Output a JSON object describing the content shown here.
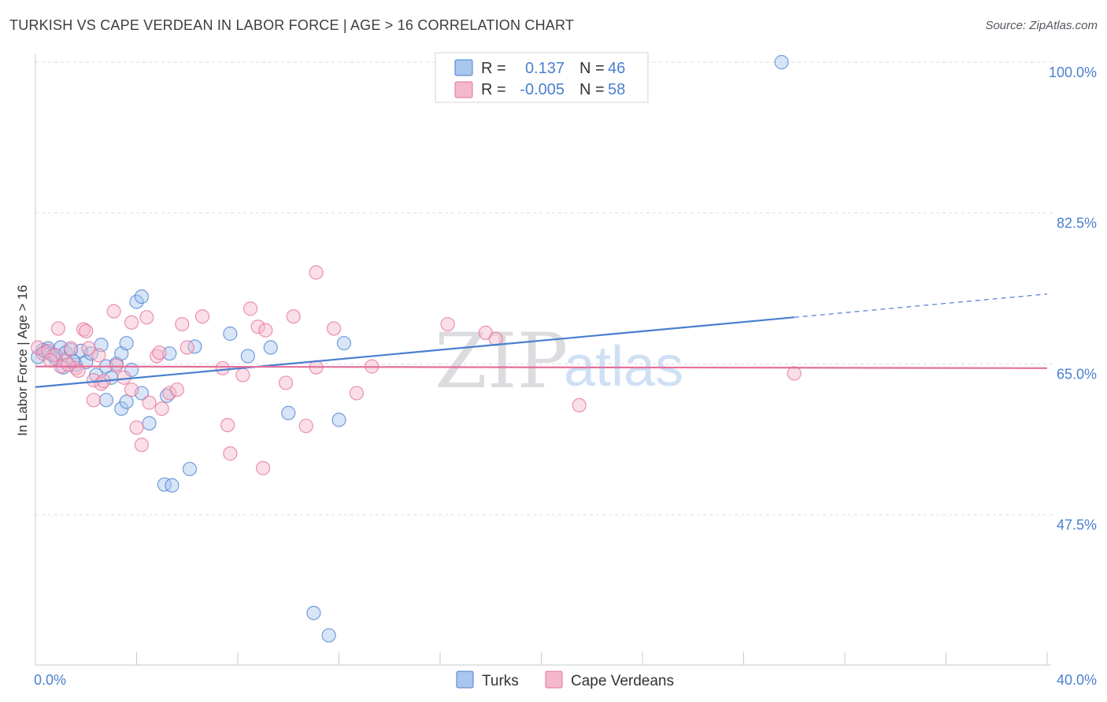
{
  "header": {
    "title": "TURKISH VS CAPE VERDEAN IN LABOR FORCE | AGE > 16 CORRELATION CHART",
    "source": "Source: ZipAtlas.com"
  },
  "watermark": {
    "zip": "ZIP",
    "atlas": "atlas"
  },
  "colors": {
    "turks": "#4a7fd0",
    "turks_fill": "#a9c6ee",
    "cape": "#e4709a",
    "cape_fill": "#f4b8cd",
    "grid": "#dcdce4",
    "tick_label": "#4a7fd0"
  },
  "legend": {
    "rows": [
      {
        "r_label": "R =",
        "r_value": "0.137",
        "n_label": "N =",
        "n_value": "46"
      },
      {
        "r_label": "R =",
        "r_value": "-0.005",
        "n_label": "N =",
        "n_value": "58"
      }
    ]
  },
  "chart_data": {
    "type": "scatter",
    "title": "TURKISH VS CAPE VERDEAN IN LABOR FORCE | AGE > 16 CORRELATION CHART",
    "xlabel": "",
    "ylabel": "In Labor Force | Age > 16",
    "xlim": [
      0,
      40
    ],
    "ylim": [
      33.5,
      102
    ],
    "x_tick_labels": [
      "0.0%",
      "40.0%"
    ],
    "y_ticks": [
      47.5,
      65.0,
      82.5,
      100.0
    ],
    "y_tick_labels": [
      "47.5%",
      "65.0%",
      "82.5%",
      "100.0%"
    ],
    "grid": true,
    "legend_position": "top-center",
    "series": [
      {
        "name": "Turks",
        "r": 0.137,
        "n": 46,
        "trend": {
          "x0": 0,
          "y0": 62.3,
          "x1": 30,
          "y1": 70.4,
          "dashed_to_x": 40,
          "dashed_y": 73.1
        },
        "points": [
          [
            0.1,
            65.8
          ],
          [
            0.3,
            66.6
          ],
          [
            0.5,
            66.8
          ],
          [
            0.6,
            66.2
          ],
          [
            0.8,
            65.6
          ],
          [
            1.0,
            66.9
          ],
          [
            1.2,
            66.3
          ],
          [
            1.4,
            66.6
          ],
          [
            1.6,
            64.9
          ],
          [
            1.8,
            66.5
          ],
          [
            2.0,
            65.2
          ],
          [
            2.2,
            66.2
          ],
          [
            2.6,
            67.2
          ],
          [
            2.8,
            64.7
          ],
          [
            3.2,
            65.0
          ],
          [
            3.4,
            66.2
          ],
          [
            3.6,
            67.4
          ],
          [
            3.8,
            64.3
          ],
          [
            4.2,
            61.6
          ],
          [
            4.0,
            72.2
          ],
          [
            4.2,
            72.8
          ],
          [
            2.8,
            60.8
          ],
          [
            3.4,
            59.8
          ],
          [
            3.6,
            60.6
          ],
          [
            4.5,
            58.1
          ],
          [
            5.2,
            61.3
          ],
          [
            5.3,
            66.2
          ],
          [
            5.1,
            51.0
          ],
          [
            5.4,
            50.9
          ],
          [
            6.1,
            52.8
          ],
          [
            6.3,
            67.0
          ],
          [
            7.7,
            68.5
          ],
          [
            8.4,
            65.9
          ],
          [
            9.3,
            66.9
          ],
          [
            10.0,
            59.3
          ],
          [
            11.0,
            36.1
          ],
          [
            11.6,
            33.5
          ],
          [
            12.0,
            58.5
          ],
          [
            12.2,
            67.4
          ],
          [
            29.5,
            100.0
          ],
          [
            0.4,
            66.4
          ],
          [
            1.5,
            65.3
          ],
          [
            2.4,
            63.7
          ],
          [
            3.0,
            63.4
          ],
          [
            1.1,
            64.6
          ],
          [
            0.7,
            66.0
          ]
        ]
      },
      {
        "name": "Cape Verdeans",
        "r": -0.005,
        "n": 58,
        "trend": {
          "x0": 0,
          "y0": 64.7,
          "x1": 40,
          "y1": 64.5
        },
        "points": [
          [
            0.1,
            66.9
          ],
          [
            0.3,
            66.2
          ],
          [
            0.5,
            66.5
          ],
          [
            0.8,
            66.0
          ],
          [
            0.9,
            69.1
          ],
          [
            1.2,
            65.3
          ],
          [
            1.4,
            66.8
          ],
          [
            1.6,
            64.5
          ],
          [
            1.7,
            64.2
          ],
          [
            1.9,
            69.0
          ],
          [
            2.0,
            68.8
          ],
          [
            2.3,
            63.1
          ],
          [
            2.3,
            60.8
          ],
          [
            2.5,
            66.0
          ],
          [
            2.6,
            62.7
          ],
          [
            2.7,
            63.0
          ],
          [
            3.1,
            71.1
          ],
          [
            3.2,
            64.8
          ],
          [
            3.5,
            63.4
          ],
          [
            3.8,
            69.8
          ],
          [
            3.8,
            62.0
          ],
          [
            4.0,
            57.6
          ],
          [
            4.2,
            55.6
          ],
          [
            4.4,
            70.4
          ],
          [
            4.5,
            60.5
          ],
          [
            4.8,
            65.9
          ],
          [
            5.0,
            59.8
          ],
          [
            5.3,
            61.6
          ],
          [
            5.6,
            62.0
          ],
          [
            5.8,
            69.6
          ],
          [
            6.0,
            66.9
          ],
          [
            6.6,
            70.5
          ],
          [
            7.4,
            64.5
          ],
          [
            7.6,
            57.9
          ],
          [
            7.7,
            54.6
          ],
          [
            8.2,
            63.7
          ],
          [
            8.5,
            71.4
          ],
          [
            8.8,
            69.3
          ],
          [
            9.1,
            68.9
          ],
          [
            9.0,
            52.9
          ],
          [
            9.9,
            62.8
          ],
          [
            10.2,
            70.5
          ],
          [
            10.7,
            57.8
          ],
          [
            11.1,
            64.6
          ],
          [
            11.1,
            75.6
          ],
          [
            11.8,
            69.1
          ],
          [
            12.7,
            61.6
          ],
          [
            13.3,
            64.7
          ],
          [
            16.3,
            69.6
          ],
          [
            17.8,
            68.6
          ],
          [
            18.2,
            67.9
          ],
          [
            21.5,
            60.2
          ],
          [
            30.0,
            63.9
          ],
          [
            1.0,
            64.7
          ],
          [
            0.6,
            65.4
          ],
          [
            2.1,
            66.8
          ],
          [
            1.3,
            64.9
          ],
          [
            4.9,
            66.3
          ]
        ]
      }
    ]
  }
}
